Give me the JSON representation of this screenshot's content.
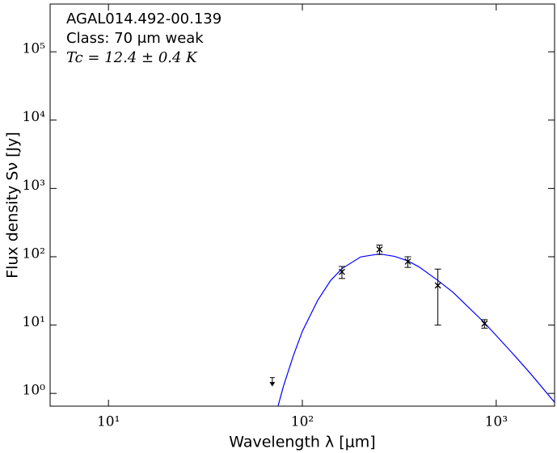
{
  "chart_data": {
    "type": "scatter",
    "annotations": [
      "AGAL014.492-00.139",
      "Class: 70 μm weak",
      "Tc = 12.4 ± 0.4 K"
    ],
    "xlabel": "Wavelength λ [μm]",
    "ylabel": "Flux density Sν [Jy]",
    "log_x": true,
    "log_y": true,
    "xlim": [
      5,
      2000
    ],
    "ylim": [
      0.65,
      500000
    ],
    "xticks": [
      {
        "value": 10,
        "label": "10¹"
      },
      {
        "value": 100,
        "label": "10²"
      },
      {
        "value": 1000,
        "label": "10³"
      }
    ],
    "yticks": [
      {
        "value": 1,
        "label": "10⁰"
      },
      {
        "value": 10,
        "label": "10¹"
      },
      {
        "value": 100,
        "label": "10²"
      },
      {
        "value": 1000,
        "label": "10³"
      },
      {
        "value": 10000,
        "label": "10⁴"
      },
      {
        "value": 100000,
        "label": "10⁵"
      }
    ],
    "series": [
      {
        "color": "#000000",
        "x": [
          160,
          250,
          350,
          500,
          870
        ],
        "values": [
          60,
          128,
          85,
          38,
          10.5
        ],
        "errors": [
          12,
          20,
          15,
          28,
          1.5
        ]
      }
    ],
    "upper_limits": {
      "color": "#000000",
      "x": [
        70
      ],
      "values": [
        1.7
      ]
    },
    "fit": {
      "color": "#0000ff",
      "x": [
        75,
        80,
        90,
        100,
        120,
        140,
        160,
        200,
        250,
        300,
        350,
        400,
        500,
        600,
        870,
        1200,
        1500,
        2000
      ],
      "values": [
        0.66,
        1.29,
        3.6,
        8.1,
        23,
        45,
        67,
        99.5,
        110,
        101,
        87,
        71,
        45,
        30,
        10.8,
        4.0,
        1.96,
        0.74
      ]
    }
  }
}
